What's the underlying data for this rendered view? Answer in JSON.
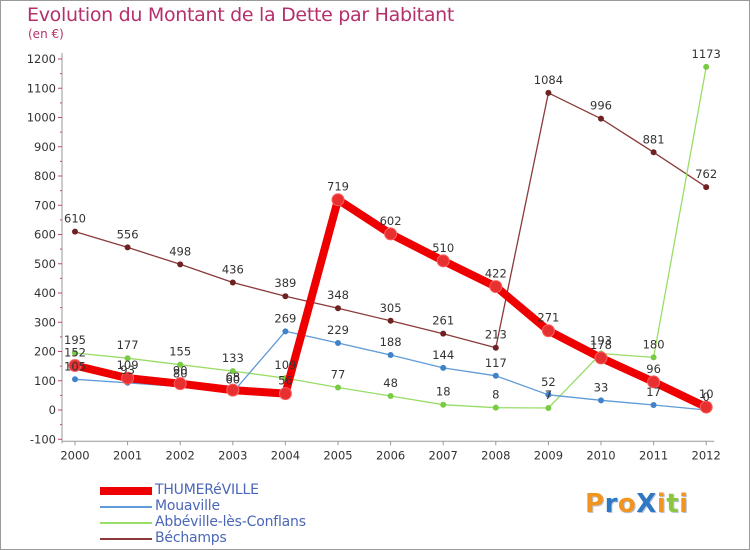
{
  "header": {
    "title": "Evolution du Montant de la Dette par Habitant",
    "subtitle": "(en €)"
  },
  "brand": {
    "text": "ProXiti",
    "letters": [
      "P",
      "r",
      "o",
      "X",
      "i",
      "t",
      "i"
    ],
    "colors": [
      "#f29420",
      "#2f78c3",
      "#f29420",
      "#2f78c3",
      "#f29420",
      "#8cc63f",
      "#f29420"
    ]
  },
  "chart_data": {
    "type": "line",
    "title": "Evolution du Montant de la Dette par Habitant",
    "subtitle": "(en €)",
    "xlabel": "",
    "ylabel": "",
    "ylim": [
      -100,
      1200
    ],
    "yticks": [
      -100,
      0,
      100,
      200,
      300,
      400,
      500,
      600,
      700,
      800,
      900,
      1000,
      1100,
      1200
    ],
    "categories": [
      "2000",
      "2001",
      "2002",
      "2003",
      "2004",
      "2005",
      "2006",
      "2007",
      "2008",
      "2009",
      "2010",
      "2011",
      "2012"
    ],
    "legend_position": "bottom-left",
    "grid": false,
    "series": [
      {
        "name": "THUMERéVILLE",
        "color": "#ee0000",
        "marker": "#e83030",
        "values": [
          152,
          109,
          90,
          68,
          56,
          719,
          602,
          510,
          422,
          271,
          178,
          96,
          10
        ],
        "labels": [
          "152",
          "109",
          "90",
          "68",
          "56",
          "719",
          "602",
          "510",
          "422",
          "271",
          "178",
          "96",
          "10"
        ]
      },
      {
        "name": "Mouaville",
        "color": "#5f9bd6",
        "marker": "#3f82c8",
        "values": [
          105,
          93,
          80,
          60,
          269,
          229,
          188,
          144,
          117,
          52,
          33,
          17,
          0
        ],
        "labels": [
          "105",
          "93",
          "80",
          "60",
          "269",
          "229",
          "188",
          "144",
          "117",
          "52",
          "33",
          "17",
          "0"
        ]
      },
      {
        "name": "Abbéville-lès-Conflans",
        "color": "#99dd66",
        "marker": "#78cc44",
        "values": [
          195,
          177,
          155,
          133,
          109,
          77,
          48,
          18,
          8,
          7,
          193,
          180,
          1173
        ],
        "labels": [
          "195",
          "177",
          "155",
          "133",
          "109",
          "77",
          "48",
          "18",
          "8",
          "7",
          "193",
          "180",
          "1173"
        ]
      },
      {
        "name": "Béchamps",
        "color": "#8b3a3a",
        "marker": "#6e2222",
        "values": [
          610,
          556,
          498,
          436,
          389,
          348,
          305,
          261,
          213,
          1084,
          996,
          881,
          762
        ],
        "labels": [
          "610",
          "556",
          "498",
          "436",
          "389",
          "348",
          "305",
          "261",
          "213",
          "1084",
          "996",
          "881",
          "762"
        ]
      }
    ]
  }
}
